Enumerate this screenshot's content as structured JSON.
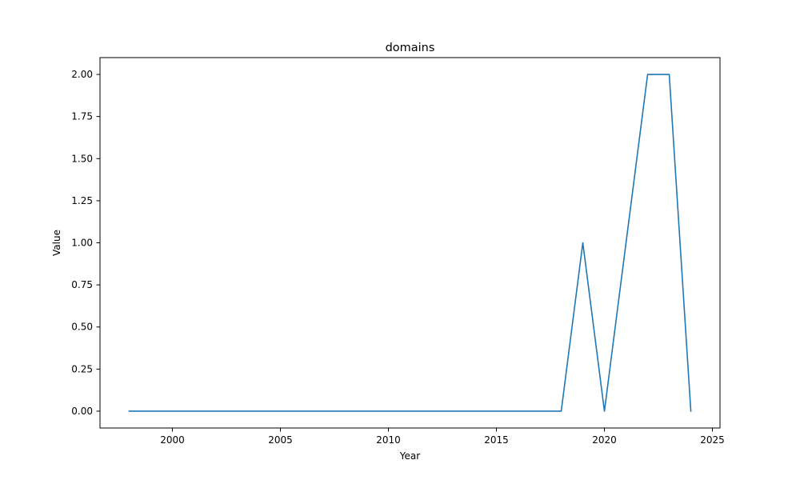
{
  "chart_data": {
    "type": "line",
    "title": "domains",
    "xlabel": "Year",
    "ylabel": "Value",
    "xlim": [
      1996.65,
      2025.35
    ],
    "ylim": [
      -0.1,
      2.1
    ],
    "xticks": [
      2000,
      2005,
      2010,
      2015,
      2020,
      2025
    ],
    "yticks": [
      0.0,
      0.25,
      0.5,
      0.75,
      1.0,
      1.25,
      1.5,
      1.75,
      2.0
    ],
    "ytick_labels": [
      "0.00",
      "0.25",
      "0.50",
      "0.75",
      "1.00",
      "1.25",
      "1.50",
      "1.75",
      "2.00"
    ],
    "grid": false,
    "series": [
      {
        "color": "#1f77b4",
        "x": [
          1998,
          1999,
          2000,
          2001,
          2002,
          2003,
          2004,
          2005,
          2006,
          2007,
          2008,
          2009,
          2010,
          2011,
          2012,
          2013,
          2014,
          2015,
          2016,
          2017,
          2018,
          2019,
          2020,
          2021,
          2022,
          2023,
          2024
        ],
        "y": [
          0,
          0,
          0,
          0,
          0,
          0,
          0,
          0,
          0,
          0,
          0,
          0,
          0,
          0,
          0,
          0,
          0,
          0,
          0,
          0,
          0,
          1,
          0,
          1,
          2,
          2,
          0
        ]
      }
    ]
  }
}
